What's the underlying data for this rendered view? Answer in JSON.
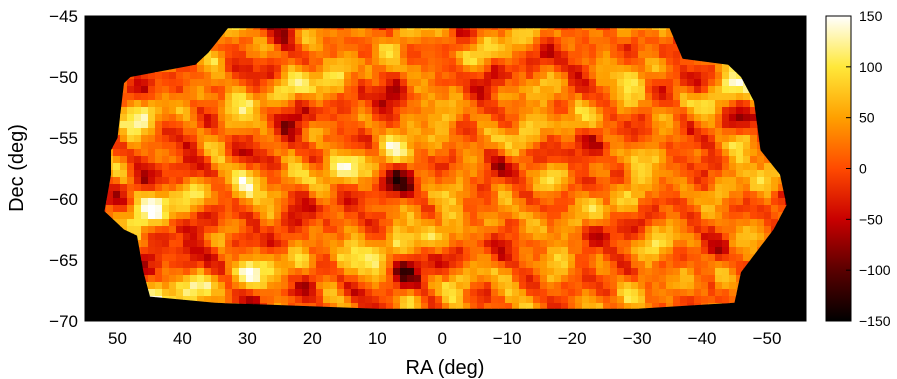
{
  "chart_data": {
    "type": "heatmap",
    "title": "",
    "xlabel": "RA (deg)",
    "ylabel": "Dec (deg)",
    "xlim": [
      55,
      -56
    ],
    "ylim": [
      -70,
      -45
    ],
    "x_axis_reversed": true,
    "x_ticks": [
      50,
      40,
      30,
      20,
      10,
      0,
      -10,
      -20,
      -30,
      -40,
      -50
    ],
    "x_tick_labels": [
      "50",
      "40",
      "30",
      "20",
      "10",
      "0",
      "−10",
      "−20",
      "−30",
      "−40",
      "−50"
    ],
    "y_ticks": [
      -45,
      -50,
      -55,
      -60,
      -65,
      -70
    ],
    "y_tick_labels": [
      "−45",
      "−50",
      "−55",
      "−60",
      "−65",
      "−70"
    ],
    "colorbar": {
      "range": [
        -150,
        150
      ],
      "ticks": [
        150,
        100,
        50,
        0,
        -50,
        -100,
        -150
      ],
      "tick_labels": [
        "150",
        "100",
        "50",
        "0",
        "−50",
        "−100",
        "−150"
      ],
      "colormap": "hot",
      "colors": [
        "#000000",
        "#5a0000",
        "#c80000",
        "#ff4a00",
        "#ffa000",
        "#ffe83a",
        "#ffffff"
      ]
    },
    "background_color": "#000000",
    "grid": false,
    "survey_footprint": [
      [
        33,
        -46
      ],
      [
        -35,
        -46
      ],
      [
        -37,
        -48.5
      ],
      [
        -44,
        -49
      ],
      [
        -46,
        -50
      ],
      [
        -48,
        -52
      ],
      [
        -49,
        -56
      ],
      [
        -52,
        -58
      ],
      [
        -53,
        -60.5
      ],
      [
        -51,
        -62.5
      ],
      [
        -46,
        -66
      ],
      [
        -45,
        -68.5
      ],
      [
        -30,
        -69
      ],
      [
        -10,
        -69
      ],
      [
        10,
        -69
      ],
      [
        35,
        -68.5
      ],
      [
        45,
        -68
      ],
      [
        46,
        -66
      ],
      [
        47,
        -63
      ],
      [
        49,
        -62.5
      ],
      [
        52,
        -61
      ],
      [
        51,
        -58
      ],
      [
        51,
        -56
      ],
      [
        50,
        -55
      ],
      [
        49,
        -50.5
      ],
      [
        48,
        -50
      ],
      [
        38,
        -49
      ],
      [
        36,
        -48
      ]
    ]
  }
}
